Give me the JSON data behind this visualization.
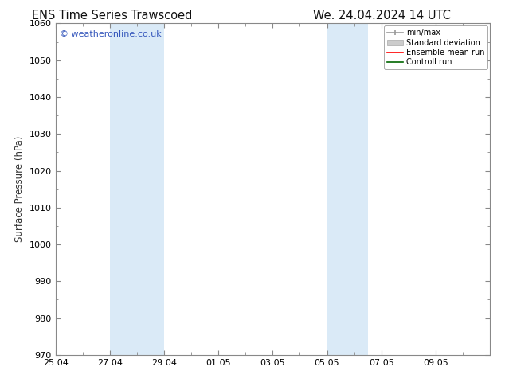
{
  "title_left": "ENS Time Series Trawscoed",
  "title_right": "We. 24.04.2024 14 UTC",
  "ylabel": "Surface Pressure (hPa)",
  "ylim": [
    970,
    1060
  ],
  "yticks": [
    970,
    980,
    990,
    1000,
    1010,
    1020,
    1030,
    1040,
    1050,
    1060
  ],
  "xlim": [
    0,
    16
  ],
  "xtick_labels": [
    "25.04",
    "27.04",
    "29.04",
    "01.05",
    "03.05",
    "05.05",
    "07.05",
    "09.05"
  ],
  "xtick_positions": [
    0,
    2,
    4,
    6,
    8,
    10,
    12,
    14
  ],
  "shaded_bands": [
    {
      "x_start": 2,
      "x_end": 4
    },
    {
      "x_start": 10,
      "x_end": 11.5
    }
  ],
  "shaded_color": "#daeaf7",
  "watermark_text": "© weatheronline.co.uk",
  "watermark_color": "#3355bb",
  "bg_color": "#ffffff",
  "spine_color": "#888888",
  "title_fontsize": 10.5,
  "label_fontsize": 8.5,
  "tick_fontsize": 8
}
